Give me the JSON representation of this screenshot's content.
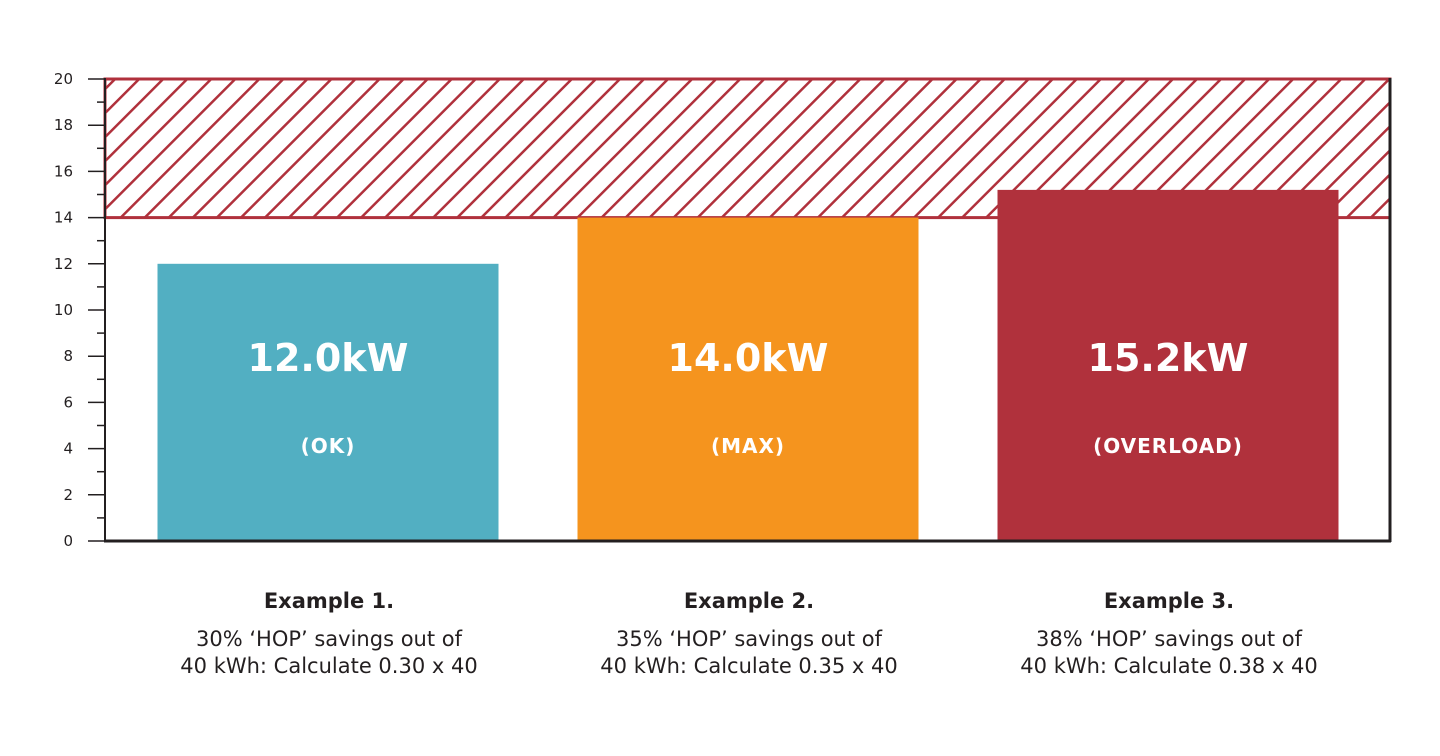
{
  "chart_data": {
    "type": "bar",
    "categories": [
      "Example 1.",
      "Example 2.",
      "Example 3."
    ],
    "values": [
      12.0,
      14.0,
      15.2
    ],
    "value_labels": [
      "12.0kW",
      "14.0kW",
      "15.2kW"
    ],
    "status_labels": [
      "(OK)",
      "(MAX)",
      "(OVERLOAD)"
    ],
    "descriptions": [
      [
        "30% ‘HOP’ savings out of",
        "40 kWh: Calculate 0.30 x 40"
      ],
      [
        "35% ‘HOP’ savings out of",
        "40 kWh: Calculate 0.35 x 40"
      ],
      [
        "38% ‘HOP’ savings out of",
        "40 kWh: Calculate 0.38 x 40"
      ]
    ],
    "colors": [
      "#52afc2",
      "#f5941e",
      "#b0313c"
    ],
    "ylim": [
      0,
      20
    ],
    "yticks": [
      0,
      2,
      4,
      6,
      8,
      10,
      12,
      14,
      16,
      18,
      20
    ],
    "minor_tick_step": 1,
    "overload_zone": {
      "from": 14,
      "to": 20,
      "color": "#b0313c",
      "pattern": "diagonal-hatch"
    },
    "xlabel": "",
    "ylabel": "",
    "title": "",
    "grid": false,
    "legend": "none"
  }
}
